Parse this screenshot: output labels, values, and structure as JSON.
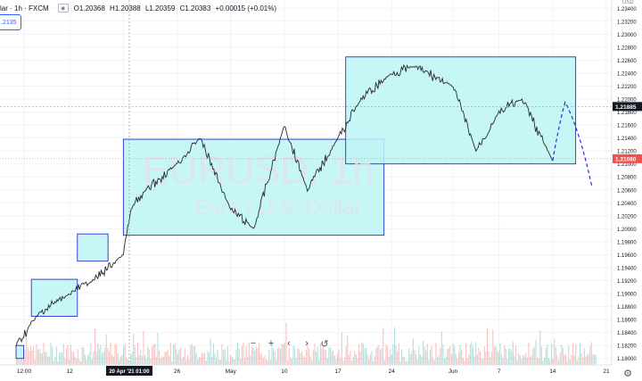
{
  "legend": {
    "symbol_partial": "lar · 1h · FXCM",
    "open": "O1.20368",
    "high": "H1.20388",
    "low": "L1.20359",
    "close": "C1.20383",
    "change": "+0.00015 (+0.01%)",
    "price_chip": ".2135"
  },
  "watermark": {
    "symbol": "EURUSD, 1h",
    "description": "Euro / U.S. Dollar"
  },
  "price_axis": {
    "currency": "USD",
    "ticks": [
      "1.23400",
      "1.23200",
      "1.23000",
      "1.22800",
      "1.22600",
      "1.22400",
      "1.22200",
      "1.22000",
      "1.21800",
      "1.21600",
      "1.21400",
      "1.21200",
      "1.21000",
      "1.20800",
      "1.20600",
      "1.20400",
      "1.20200",
      "1.20000",
      "1.19800",
      "1.19600",
      "1.19400",
      "1.19200",
      "1.19000",
      "1.18800",
      "1.18600",
      "1.18400",
      "1.18200",
      "1.18000"
    ],
    "crosshair_price": "1.21885",
    "last_price": "1.21080"
  },
  "time_axis": {
    "labels": [
      "12:00",
      "12",
      "19",
      "26",
      "May",
      "10",
      "17",
      "24",
      "Jun",
      "7",
      "14",
      "21"
    ],
    "crosshair_label": "20 Apr '21  01:00"
  },
  "toolbar": {
    "zoom_out": "−",
    "zoom_in": "+",
    "scroll_left": "‹",
    "scroll_right": "›",
    "reset": "↺"
  },
  "colors": {
    "up": "#26a69a",
    "down": "#ef5350",
    "rect_fill": "#bdf4f4",
    "rect_border": "#2a2ecf",
    "price_line": "#2a2a2a",
    "crosshair": "#888888",
    "last_price_bg": "#ef5350",
    "crosshair_label_bg": "#131722"
  },
  "chart_data": {
    "type": "line",
    "instrument": "EURUSD",
    "timeframe": "1h",
    "x": [
      "2021-04-05",
      "2021-04-08",
      "2021-04-12",
      "2021-04-15",
      "2021-04-19",
      "2021-04-20",
      "2021-04-22",
      "2021-04-26",
      "2021-04-29",
      "2021-05-03",
      "2021-05-06",
      "2021-05-10",
      "2021-05-13",
      "2021-05-17",
      "2021-05-20",
      "2021-05-24",
      "2021-05-27",
      "2021-06-01",
      "2021-06-04",
      "2021-06-07",
      "2021-06-10",
      "2021-06-14"
    ],
    "y": [
      1.182,
      1.187,
      1.19,
      1.192,
      1.196,
      1.203,
      1.206,
      1.21,
      1.214,
      1.203,
      1.2,
      1.216,
      1.206,
      1.214,
      1.22,
      1.224,
      1.225,
      1.222,
      1.212,
      1.218,
      1.22,
      1.2105
    ],
    "ylim": [
      1.179,
      1.235
    ],
    "projection": [
      1.2105,
      1.2195,
      1.2065
    ],
    "zones": [
      {
        "from": "2021-04-05",
        "to": "2021-04-06",
        "low": 1.18,
        "high": 1.182
      },
      {
        "from": "2021-04-07",
        "to": "2021-04-13",
        "low": 1.1865,
        "high": 1.1922
      },
      {
        "from": "2021-04-13",
        "to": "2021-04-17",
        "low": 1.195,
        "high": 1.1992
      },
      {
        "from": "2021-04-19",
        "to": "2021-05-23",
        "low": 1.199,
        "high": 1.2138
      },
      {
        "from": "2021-05-18",
        "to": "2021-06-17",
        "low": 1.21,
        "high": 1.2265
      }
    ]
  }
}
